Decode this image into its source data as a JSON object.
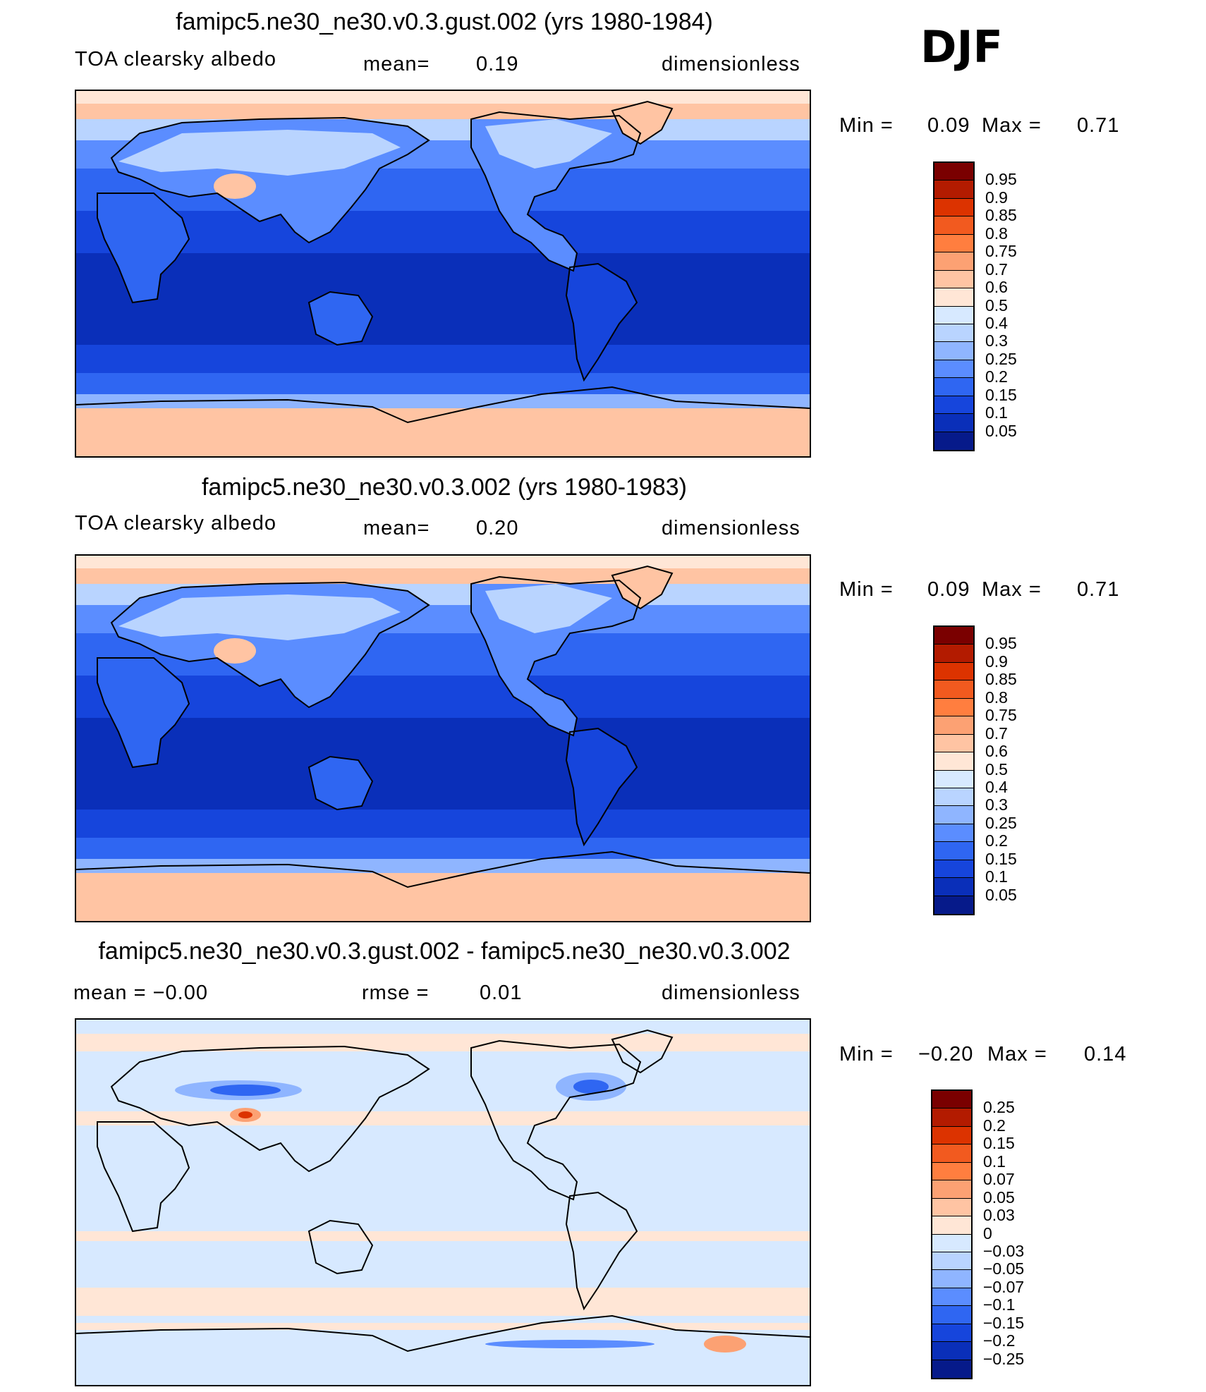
{
  "season": "DJF",
  "panels": [
    {
      "title": "famipc5.ne30_ne30.v0.3.gust.002 (yrs 1980-1984)",
      "left": "TOA clearsky albedo",
      "mid_label": "mean=",
      "mid_value": "0.19",
      "right": "dimensionless",
      "min_label": "Min  =",
      "min_value": "0.09",
      "max_label": "Max  =",
      "max_value": "0.71",
      "map_kind": "field",
      "colorbar": {
        "labels": [
          "0.95",
          "0.9",
          "0.85",
          "0.8",
          "0.75",
          "0.7",
          "0.6",
          "0.5",
          "0.4",
          "0.3",
          "0.25",
          "0.2",
          "0.15",
          "0.1",
          "0.05"
        ],
        "colors": [
          "#7a0000",
          "#b31b00",
          "#dc3300",
          "#f25a1f",
          "#ff7e3f",
          "#fca173",
          "#ffc4a3",
          "#ffe6d6",
          "#d7e9ff",
          "#b9d4ff",
          "#8fb5ff",
          "#5b8dff",
          "#2f66f2",
          "#1645dc",
          "#0a2fb9",
          "#061a8a"
        ]
      }
    },
    {
      "title": "famipc5.ne30_ne30.v0.3.002 (yrs 1980-1983)",
      "left": "TOA clearsky albedo",
      "mid_label": "mean=",
      "mid_value": "0.20",
      "right": "dimensionless",
      "min_label": "Min  =",
      "min_value": "0.09",
      "max_label": "Max  =",
      "max_value": "0.71",
      "map_kind": "field",
      "colorbar": {
        "labels": [
          "0.95",
          "0.9",
          "0.85",
          "0.8",
          "0.75",
          "0.7",
          "0.6",
          "0.5",
          "0.4",
          "0.3",
          "0.25",
          "0.2",
          "0.15",
          "0.1",
          "0.05"
        ],
        "colors": [
          "#7a0000",
          "#b31b00",
          "#dc3300",
          "#f25a1f",
          "#ff7e3f",
          "#fca173",
          "#ffc4a3",
          "#ffe6d6",
          "#d7e9ff",
          "#b9d4ff",
          "#8fb5ff",
          "#5b8dff",
          "#2f66f2",
          "#1645dc",
          "#0a2fb9",
          "#061a8a"
        ]
      }
    },
    {
      "title": "famipc5.ne30_ne30.v0.3.gust.002 - famipc5.ne30_ne30.v0.3.002",
      "left": "mean  =    −0.00",
      "mid_label": "rmse  =",
      "mid_value": "0.01",
      "right": "dimensionless",
      "min_label": "Min  =",
      "min_value": "−0.20",
      "max_label": "Max  =",
      "max_value": "0.14",
      "map_kind": "diff",
      "colorbar": {
        "labels": [
          "0.25",
          "0.2",
          "0.15",
          "0.1",
          "0.07",
          "0.05",
          "0.03",
          "0",
          "−0.03",
          "−0.05",
          "−0.07",
          "−0.1",
          "−0.15",
          "−0.2",
          "−0.25"
        ],
        "colors": [
          "#7a0000",
          "#b31b00",
          "#dc3300",
          "#f25a1f",
          "#ff7e3f",
          "#fca173",
          "#ffc4a3",
          "#ffe6d6",
          "#d7e9ff",
          "#b9d4ff",
          "#8fb5ff",
          "#5b8dff",
          "#2f66f2",
          "#1645dc",
          "#0a2fb9",
          "#061a8a"
        ]
      }
    }
  ]
}
